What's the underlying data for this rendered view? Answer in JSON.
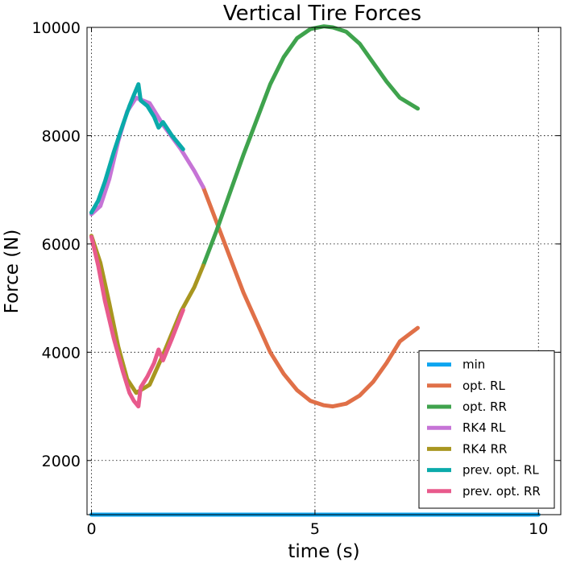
{
  "chart_data": {
    "type": "line",
    "title": "Vertical Tire Forces",
    "xlabel": "time (s)",
    "ylabel": "Force (N)",
    "xlim": [
      -0.1,
      10.5
    ],
    "ylim": [
      1000,
      10000
    ],
    "xticks": [
      0,
      5,
      10
    ],
    "xtick_labels": [
      "0",
      "5",
      "10"
    ],
    "yticks": [
      2000,
      4000,
      6000,
      8000,
      10000
    ],
    "ytick_labels": [
      "2000",
      "4000",
      "6000",
      "8000",
      "10000"
    ],
    "grid": true,
    "legend_position": "lower-right",
    "series": [
      {
        "name": "min",
        "color": "#0ea5f0",
        "x": [
          0,
          10
        ],
        "y": [
          1000,
          1000
        ]
      },
      {
        "name": "opt. RL",
        "color": "#e07048",
        "x": [
          2.5,
          2.8,
          3.1,
          3.4,
          3.7,
          4.0,
          4.3,
          4.6,
          4.9,
          5.2,
          5.4,
          5.7,
          6.0,
          6.3,
          6.6,
          6.9,
          7.3
        ],
        "y": [
          7050,
          6400,
          5750,
          5100,
          4550,
          4000,
          3600,
          3300,
          3100,
          3020,
          3000,
          3050,
          3200,
          3450,
          3800,
          4200,
          4450
        ]
      },
      {
        "name": "opt. RR",
        "color": "#3fa34d",
        "x": [
          2.5,
          2.8,
          3.1,
          3.4,
          3.7,
          4.0,
          4.3,
          4.6,
          4.9,
          5.2,
          5.4,
          5.7,
          6.0,
          6.3,
          6.6,
          6.9,
          7.3
        ],
        "y": [
          5600,
          6250,
          6950,
          7650,
          8300,
          8950,
          9450,
          9800,
          9970,
          10020,
          10000,
          9920,
          9700,
          9350,
          9000,
          8700,
          8500
        ]
      },
      {
        "name": "RK4 RL",
        "color": "#c674d6",
        "x": [
          0,
          0.2,
          0.4,
          0.6,
          0.8,
          1.0,
          1.3,
          1.6,
          2.0,
          2.3,
          2.5
        ],
        "y": [
          6550,
          6700,
          7200,
          7900,
          8450,
          8700,
          8600,
          8200,
          7750,
          7350,
          7050
        ]
      },
      {
        "name": "RK4 RR",
        "color": "#a89620",
        "x": [
          0,
          0.2,
          0.4,
          0.6,
          0.8,
          1.0,
          1.3,
          1.6,
          2.0,
          2.3,
          2.5
        ],
        "y": [
          6150,
          5650,
          4900,
          4100,
          3500,
          3250,
          3400,
          3950,
          4750,
          5200,
          5600
        ]
      },
      {
        "name": "prev. opt. RL",
        "color": "#0aaaaa",
        "x": [
          0,
          0.15,
          0.3,
          0.5,
          0.7,
          0.85,
          0.95,
          1.05,
          1.1,
          1.25,
          1.4,
          1.5,
          1.6,
          1.8,
          2.05
        ],
        "y": [
          6580,
          6800,
          7150,
          7700,
          8200,
          8550,
          8750,
          8950,
          8650,
          8550,
          8350,
          8150,
          8250,
          8000,
          7750
        ]
      },
      {
        "name": "prev. opt. RR",
        "color": "#e85a8c",
        "x": [
          0,
          0.15,
          0.3,
          0.5,
          0.7,
          0.85,
          0.95,
          1.05,
          1.1,
          1.25,
          1.4,
          1.5,
          1.6,
          1.8,
          2.05
        ],
        "y": [
          6130,
          5600,
          4950,
          4250,
          3650,
          3250,
          3100,
          3000,
          3350,
          3550,
          3800,
          4050,
          3850,
          4250,
          4780
        ]
      }
    ]
  }
}
